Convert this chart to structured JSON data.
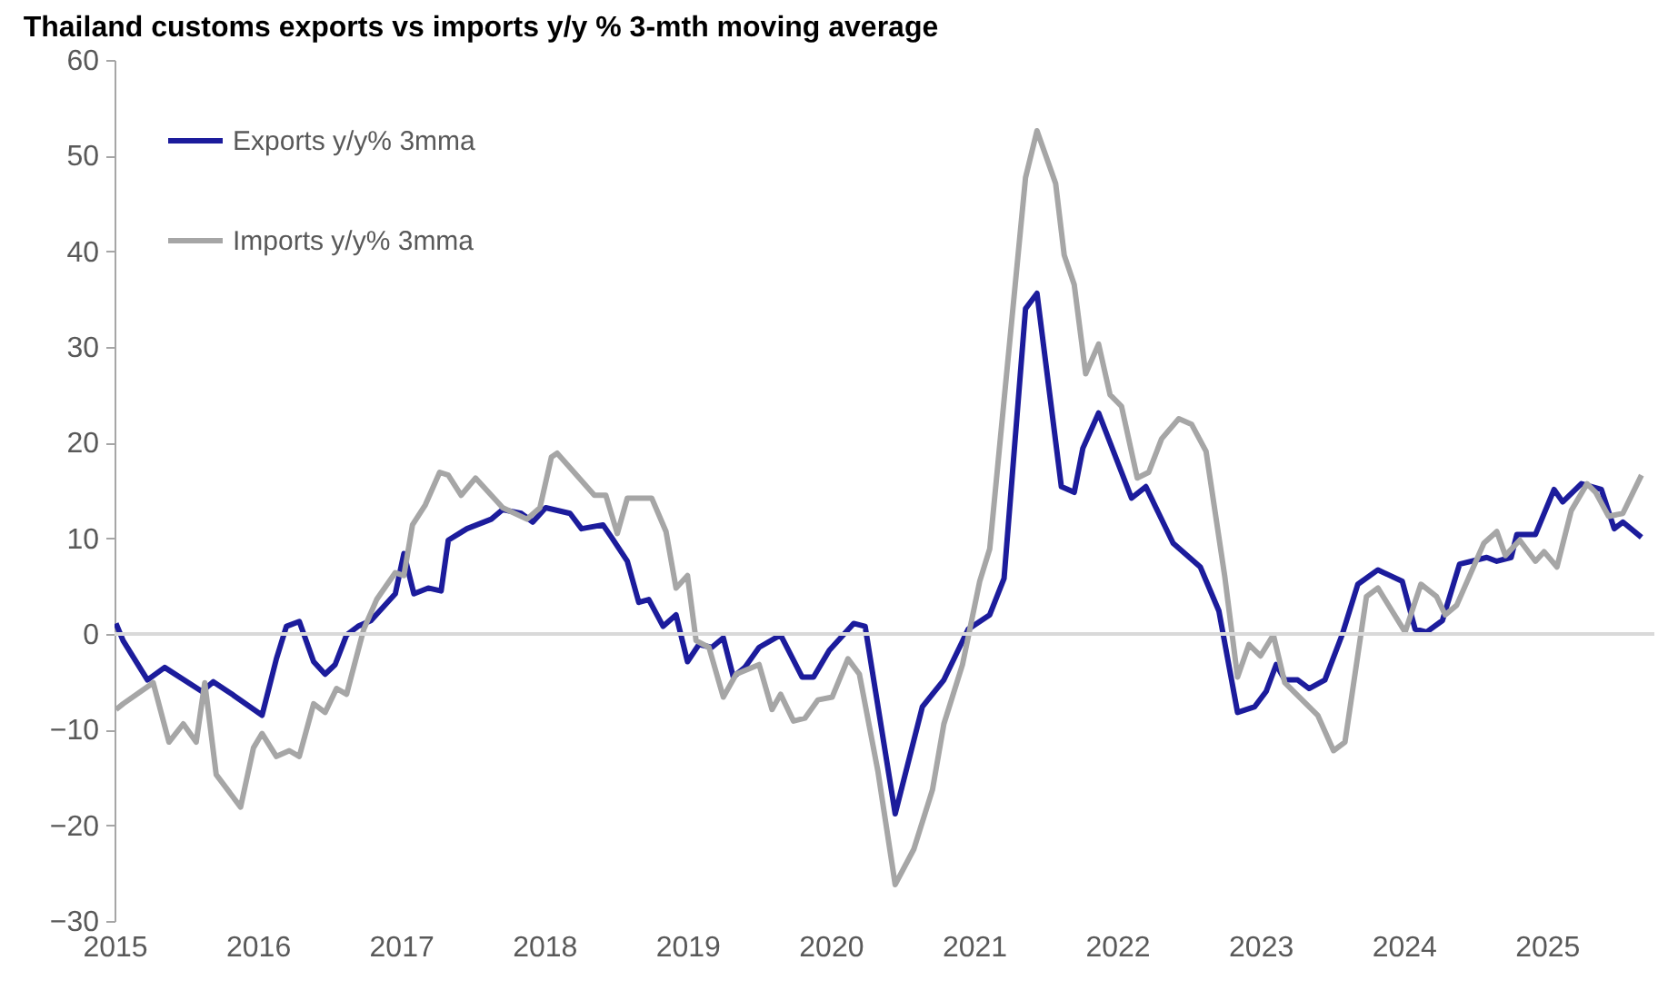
{
  "chart_data": {
    "type": "line",
    "title": "Thailand customs exports vs imports y/y % 3-mth moving average",
    "xlim": [
      2015,
      2025.75
    ],
    "xticks": [
      2015,
      2016,
      2017,
      2018,
      2019,
      2020,
      2021,
      2022,
      2023,
      2024,
      2025
    ],
    "ylim": [
      -30,
      60
    ],
    "yticks": [
      -30,
      -20,
      -10,
      0,
      10,
      20,
      30,
      40,
      50,
      60
    ],
    "legend": "top left",
    "ref_lines": [
      {
        "axis": "y",
        "value": 0,
        "color": "#d9d9d9"
      }
    ],
    "series": [
      {
        "name": "Exports y/y% 3mma",
        "color": "#1c1c9c",
        "x": [
          2015.01,
          2015.06,
          2015.23,
          2015.35,
          2015.61,
          2015.69,
          2015.82,
          2016.03,
          2016.13,
          2016.2,
          2016.29,
          2016.39,
          2016.47,
          2016.54,
          2016.62,
          2016.7,
          2016.79,
          2016.96,
          2017.02,
          2017.09,
          2017.19,
          2017.28,
          2017.33,
          2017.46,
          2017.63,
          2017.71,
          2017.84,
          2017.92,
          2018.01,
          2018.18,
          2018.26,
          2018.41,
          2018.47,
          2018.58,
          2018.66,
          2018.73,
          2018.83,
          2018.92,
          2019.0,
          2019.08,
          2019.17,
          2019.25,
          2019.32,
          2019.4,
          2019.5,
          2019.65,
          2019.8,
          2019.88,
          2019.99,
          2020.16,
          2020.24,
          2020.45,
          2020.64,
          2020.79,
          2020.96,
          2021.11,
          2021.21,
          2021.36,
          2021.44,
          2021.61,
          2021.7,
          2021.76,
          2021.87,
          2022.1,
          2022.2,
          2022.39,
          2022.58,
          2022.71,
          2022.84,
          2022.96,
          2023.04,
          2023.11,
          2023.17,
          2023.26,
          2023.34,
          2023.45,
          2023.57,
          2023.68,
          2023.82,
          2023.99,
          2024.08,
          2024.16,
          2024.27,
          2024.39,
          2024.58,
          2024.65,
          2024.75,
          2024.79,
          2024.92,
          2025.05,
          2025.11,
          2025.24,
          2025.38,
          2025.47,
          2025.53,
          2025.66
        ],
        "values": [
          1.1,
          -0.7,
          -4.8,
          -3.5,
          -6,
          -5,
          -6.3,
          -8.5,
          -2.6,
          0.8,
          1.3,
          -2.9,
          -4.2,
          -3.2,
          -0.1,
          0.8,
          1.4,
          4.2,
          8.4,
          4.2,
          4.8,
          4.5,
          9.8,
          11,
          12,
          13,
          12.6,
          11.7,
          13.2,
          12.6,
          11,
          11.4,
          10.1,
          7.6,
          3.3,
          3.6,
          0.8,
          2,
          -2.9,
          -1.1,
          -1.4,
          -0.4,
          -4.5,
          -3.5,
          -1.4,
          -0.1,
          -4.5,
          -4.5,
          -1.7,
          1.1,
          0.8,
          -18.8,
          -7.6,
          -4.8,
          0.5,
          2,
          5.8,
          34,
          35.6,
          15.4,
          14.8,
          19.4,
          23.1,
          14.2,
          15.4,
          9.5,
          7,
          2.4,
          -8.2,
          -7.6,
          -6,
          -3.2,
          -4.8,
          -4.8,
          -5.7,
          -4.8,
          -0.1,
          5.2,
          6.7,
          5.5,
          0.5,
          0.2,
          1.4,
          7.3,
          8,
          7.6,
          8,
          10.4,
          10.4,
          15.1,
          13.8,
          15.7,
          15.1,
          11,
          11.7,
          10.1
        ]
      },
      {
        "name": "Imports y/y% 3mma",
        "color": "#a6a6a6",
        "x": [
          2015.01,
          2015.06,
          2015.27,
          2015.38,
          2015.48,
          2015.57,
          2015.63,
          2015.71,
          2015.88,
          2015.97,
          2016.03,
          2016.13,
          2016.22,
          2016.29,
          2016.39,
          2016.47,
          2016.55,
          2016.62,
          2016.74,
          2016.83,
          2016.96,
          2017.02,
          2017.08,
          2017.17,
          2017.27,
          2017.33,
          2017.42,
          2017.52,
          2017.71,
          2017.88,
          2017.97,
          2018.05,
          2018.09,
          2018.35,
          2018.43,
          2018.51,
          2018.58,
          2018.75,
          2018.85,
          2018.92,
          2019.0,
          2019.06,
          2019.15,
          2019.25,
          2019.34,
          2019.5,
          2019.59,
          2019.65,
          2019.74,
          2019.82,
          2019.91,
          2020.01,
          2020.12,
          2020.2,
          2020.33,
          2020.45,
          2020.58,
          2020.71,
          2020.79,
          2020.92,
          2021.04,
          2021.11,
          2021.36,
          2021.44,
          2021.57,
          2021.63,
          2021.7,
          2021.78,
          2021.87,
          2021.95,
          2022.03,
          2022.14,
          2022.22,
          2022.31,
          2022.43,
          2022.52,
          2022.62,
          2022.75,
          2022.84,
          2022.92,
          2023.0,
          2023.09,
          2023.17,
          2023.4,
          2023.51,
          2023.59,
          2023.74,
          2023.82,
          2024.01,
          2024.12,
          2024.23,
          2024.29,
          2024.37,
          2024.56,
          2024.65,
          2024.71,
          2024.81,
          2024.92,
          2024.98,
          2025.07,
          2025.17,
          2025.28,
          2025.34,
          2025.43,
          2025.53,
          2025.66
        ],
        "values": [
          -7.9,
          -7.3,
          -5.1,
          -11.3,
          -9.4,
          -11.3,
          -5.1,
          -14.7,
          -18.1,
          -11.9,
          -10.4,
          -12.8,
          -12.2,
          -12.8,
          -7.3,
          -8.2,
          -5.7,
          -6.3,
          0.5,
          3.6,
          6.4,
          6.1,
          11.4,
          13.5,
          16.9,
          16.6,
          14.5,
          16.3,
          13.2,
          12,
          13.2,
          18.5,
          18.9,
          14.5,
          14.5,
          10.5,
          14.2,
          14.2,
          10.7,
          4.8,
          6.1,
          -0.7,
          -1.4,
          -6.6,
          -4.2,
          -3.2,
          -7.9,
          -6.3,
          -9.1,
          -8.8,
          -6.9,
          -6.6,
          -2.6,
          -4.2,
          -14.4,
          -26.2,
          -22.5,
          -16.3,
          -9.4,
          -3.2,
          5.5,
          8.9,
          47.7,
          52.6,
          47.1,
          39.6,
          36.5,
          27.2,
          30.3,
          25,
          23.8,
          16.3,
          16.9,
          20.4,
          22.5,
          21.9,
          19.1,
          6.1,
          -4.5,
          -1.1,
          -2.3,
          -0.1,
          -5.1,
          -8.5,
          -12.2,
          -11.3,
          3.9,
          4.8,
          0.2,
          5.2,
          3.9,
          2,
          3,
          9.5,
          10.7,
          8.2,
          9.8,
          7.6,
          8.6,
          7,
          12.9,
          15.7,
          14.8,
          12.3,
          12.6,
          16.6
        ]
      }
    ]
  }
}
